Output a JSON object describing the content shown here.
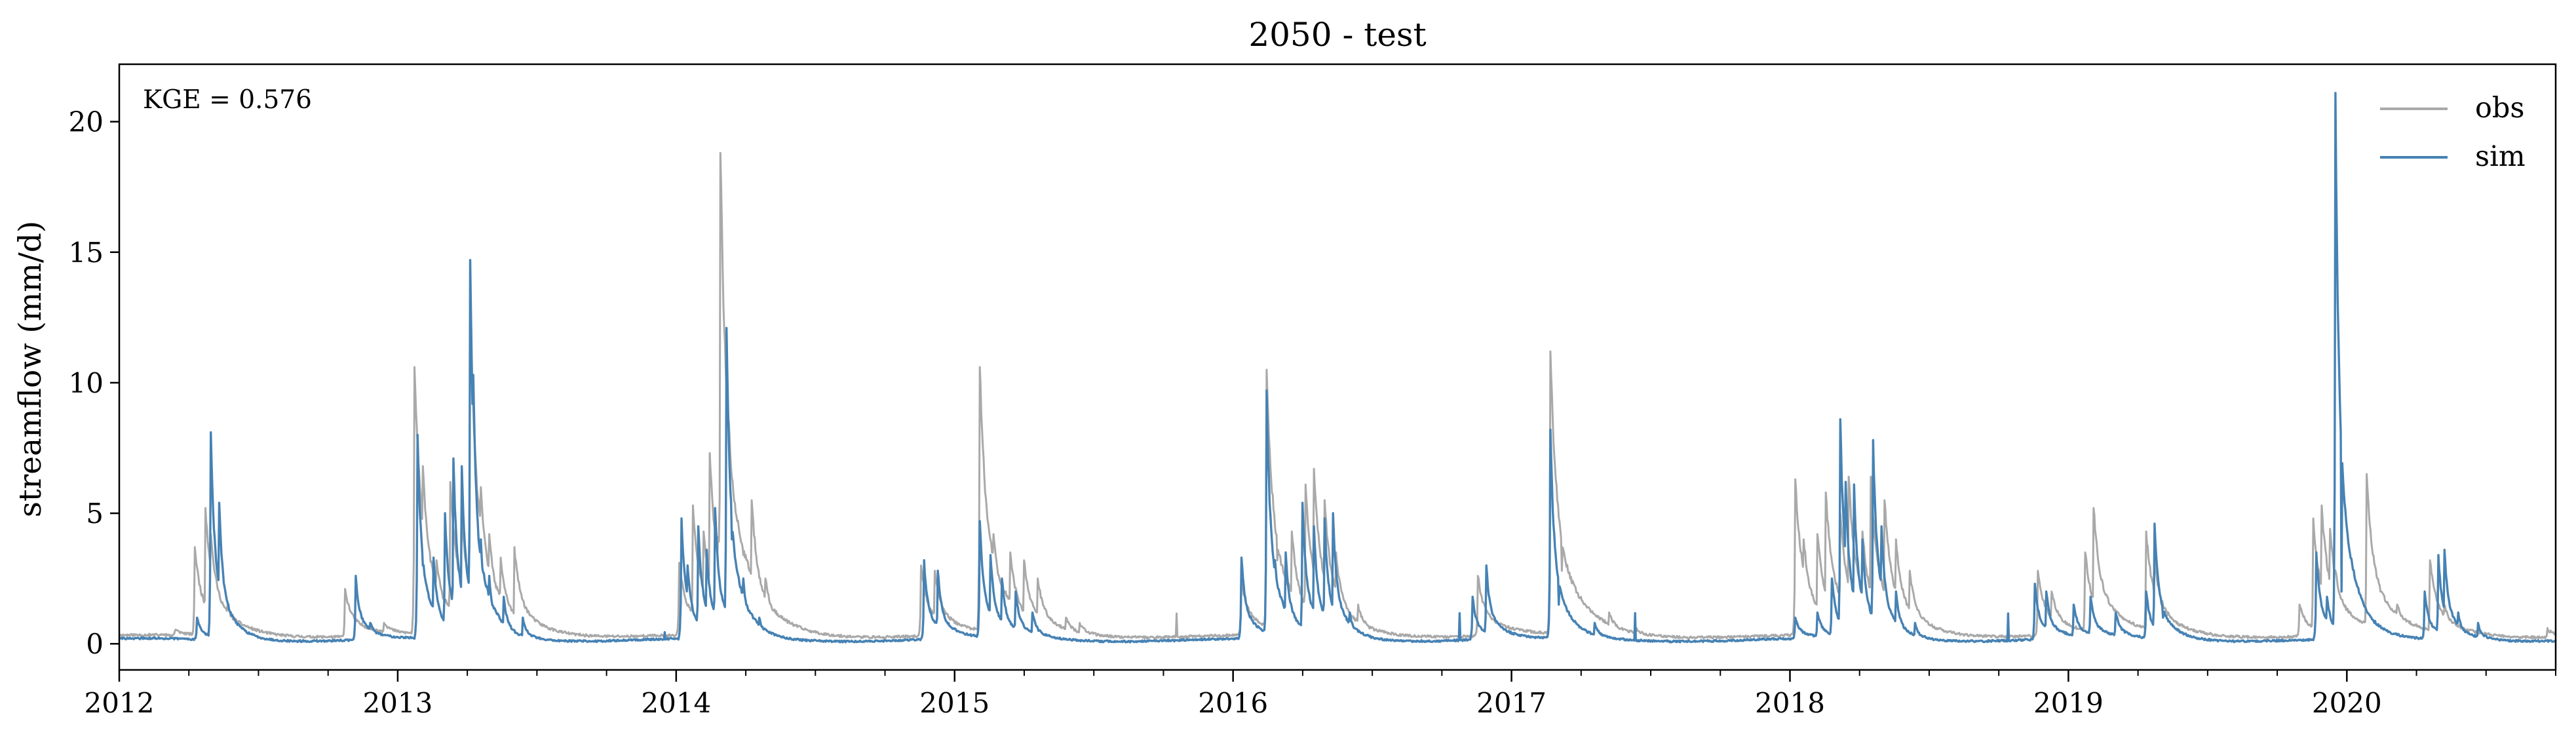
{
  "chart_data": {
    "type": "line",
    "title": "2050 - test",
    "xlabel": "",
    "ylabel": "streamflow (mm/d)",
    "annotation": "KGE = 0.576",
    "xlim": [
      2012.0,
      2020.75
    ],
    "ylim": [
      -1.0,
      22.2
    ],
    "x_ticks": [
      "2012",
      "2013",
      "2014",
      "2015",
      "2016",
      "2017",
      "2018",
      "2019",
      "2020"
    ],
    "y_ticks": [
      "0",
      "5",
      "10",
      "15",
      "20"
    ],
    "grid": false,
    "legend_position": "top-right",
    "colors": {
      "obs": "#a9a9a9",
      "sim": "#4682b4"
    },
    "series": [
      {
        "name": "obs",
        "peaks": [
          [
            2012.2,
            0.5
          ],
          [
            2012.27,
            3.7
          ],
          [
            2012.31,
            5.2
          ],
          [
            2012.33,
            4.2
          ],
          [
            2012.39,
            1.5
          ],
          [
            2012.81,
            2.1
          ],
          [
            2012.95,
            0.8
          ],
          [
            2013.06,
            10.6
          ],
          [
            2013.09,
            6.8
          ],
          [
            2013.14,
            3.2
          ],
          [
            2013.19,
            6.2
          ],
          [
            2013.23,
            4.8
          ],
          [
            2013.26,
            12.4
          ],
          [
            2013.3,
            6.0
          ],
          [
            2013.33,
            4.2
          ],
          [
            2013.37,
            3.3
          ],
          [
            2013.42,
            3.7
          ],
          [
            2013.47,
            1.2
          ],
          [
            2014.01,
            3.1
          ],
          [
            2014.06,
            5.3
          ],
          [
            2014.1,
            4.3
          ],
          [
            2014.12,
            7.3
          ],
          [
            2014.15,
            4.1
          ],
          [
            2014.16,
            18.8
          ],
          [
            2014.19,
            8.5
          ],
          [
            2014.24,
            3.4
          ],
          [
            2014.27,
            5.5
          ],
          [
            2014.32,
            2.5
          ],
          [
            2014.4,
            0.8
          ],
          [
            2014.88,
            3.0
          ],
          [
            2014.93,
            2.8
          ],
          [
            2015.09,
            10.6
          ],
          [
            2015.11,
            5.8
          ],
          [
            2015.14,
            4.2
          ],
          [
            2015.2,
            3.5
          ],
          [
            2015.25,
            3.2
          ],
          [
            2015.3,
            2.5
          ],
          [
            2015.4,
            1.0
          ],
          [
            2015.45,
            0.8
          ],
          [
            2016.03,
            2.4
          ],
          [
            2016.12,
            10.5
          ],
          [
            2016.16,
            3.2
          ],
          [
            2016.21,
            4.3
          ],
          [
            2016.26,
            6.1
          ],
          [
            2016.29,
            6.7
          ],
          [
            2016.33,
            5.5
          ],
          [
            2016.37,
            3.5
          ],
          [
            2016.45,
            1.5
          ],
          [
            2016.88,
            2.6
          ],
          [
            2017.14,
            11.2
          ],
          [
            2017.18,
            2.8
          ],
          [
            2017.25,
            1.8
          ],
          [
            2017.35,
            1.2
          ],
          [
            2017.45,
            0.6
          ],
          [
            2018.02,
            6.3
          ],
          [
            2018.05,
            4.0
          ],
          [
            2018.1,
            4.2
          ],
          [
            2018.13,
            5.8
          ],
          [
            2018.18,
            5.0
          ],
          [
            2018.21,
            6.4
          ],
          [
            2018.26,
            4.3
          ],
          [
            2018.29,
            6.4
          ],
          [
            2018.34,
            5.5
          ],
          [
            2018.38,
            4.0
          ],
          [
            2018.43,
            2.8
          ],
          [
            2018.89,
            2.8
          ],
          [
            2018.94,
            2.0
          ],
          [
            2019.06,
            3.5
          ],
          [
            2019.09,
            5.2
          ],
          [
            2019.14,
            1.8
          ],
          [
            2019.28,
            4.3
          ],
          [
            2019.31,
            3.2
          ],
          [
            2019.36,
            1.2
          ],
          [
            2019.83,
            1.5
          ],
          [
            2019.88,
            4.8
          ],
          [
            2019.91,
            5.3
          ],
          [
            2019.94,
            4.4
          ],
          [
            2019.96,
            2.8
          ],
          [
            2020.07,
            6.5
          ],
          [
            2020.12,
            2.0
          ],
          [
            2020.18,
            1.5
          ],
          [
            2020.3,
            3.2
          ],
          [
            2020.35,
            1.5
          ],
          [
            2020.72,
            0.6
          ]
        ]
      },
      {
        "name": "sim",
        "peaks": [
          [
            2012.28,
            1.0
          ],
          [
            2012.33,
            8.1
          ],
          [
            2012.36,
            5.4
          ],
          [
            2012.41,
            1.0
          ],
          [
            2012.85,
            2.6
          ],
          [
            2012.9,
            0.8
          ],
          [
            2013.07,
            8.0
          ],
          [
            2013.09,
            3.0
          ],
          [
            2013.13,
            3.3
          ],
          [
            2013.17,
            5.0
          ],
          [
            2013.2,
            7.1
          ],
          [
            2013.23,
            6.8
          ],
          [
            2013.26,
            14.7
          ],
          [
            2013.27,
            10.3
          ],
          [
            2013.3,
            4.0
          ],
          [
            2013.33,
            2.6
          ],
          [
            2013.38,
            1.8
          ],
          [
            2013.45,
            1.0
          ],
          [
            2014.02,
            4.8
          ],
          [
            2014.04,
            3.0
          ],
          [
            2014.08,
            4.5
          ],
          [
            2014.11,
            3.6
          ],
          [
            2014.14,
            5.2
          ],
          [
            2014.18,
            12.1
          ],
          [
            2014.2,
            4.0
          ],
          [
            2014.24,
            2.5
          ],
          [
            2014.3,
            1.0
          ],
          [
            2014.89,
            3.2
          ],
          [
            2014.94,
            2.8
          ],
          [
            2015.09,
            4.7
          ],
          [
            2015.13,
            3.4
          ],
          [
            2015.17,
            2.5
          ],
          [
            2015.22,
            2.0
          ],
          [
            2015.28,
            1.2
          ],
          [
            2016.03,
            3.3
          ],
          [
            2016.12,
            9.7
          ],
          [
            2016.15,
            3.2
          ],
          [
            2016.19,
            3.5
          ],
          [
            2016.25,
            5.4
          ],
          [
            2016.29,
            4.5
          ],
          [
            2016.33,
            4.8
          ],
          [
            2016.36,
            5.0
          ],
          [
            2016.42,
            1.2
          ],
          [
            2016.86,
            1.8
          ],
          [
            2016.91,
            3.0
          ],
          [
            2017.14,
            8.2
          ],
          [
            2017.17,
            1.5
          ],
          [
            2017.3,
            0.8
          ],
          [
            2018.02,
            1.0
          ],
          [
            2018.1,
            1.2
          ],
          [
            2018.15,
            2.5
          ],
          [
            2018.18,
            8.6
          ],
          [
            2018.2,
            6.2
          ],
          [
            2018.23,
            6.1
          ],
          [
            2018.26,
            4.0
          ],
          [
            2018.3,
            7.8
          ],
          [
            2018.33,
            4.5
          ],
          [
            2018.38,
            2.0
          ],
          [
            2018.45,
            0.8
          ],
          [
            2018.88,
            2.3
          ],
          [
            2018.92,
            2.0
          ],
          [
            2019.02,
            1.5
          ],
          [
            2019.08,
            1.8
          ],
          [
            2019.17,
            1.2
          ],
          [
            2019.28,
            2.0
          ],
          [
            2019.31,
            4.6
          ],
          [
            2019.34,
            1.0
          ],
          [
            2019.89,
            3.5
          ],
          [
            2019.93,
            1.8
          ],
          [
            2019.96,
            21.1
          ],
          [
            2019.98,
            2.0
          ],
          [
            2020.1,
            0.8
          ],
          [
            2020.28,
            2.0
          ],
          [
            2020.33,
            3.4
          ],
          [
            2020.35,
            3.6
          ],
          [
            2020.4,
            1.2
          ],
          [
            2020.47,
            0.8
          ]
        ]
      }
    ]
  }
}
